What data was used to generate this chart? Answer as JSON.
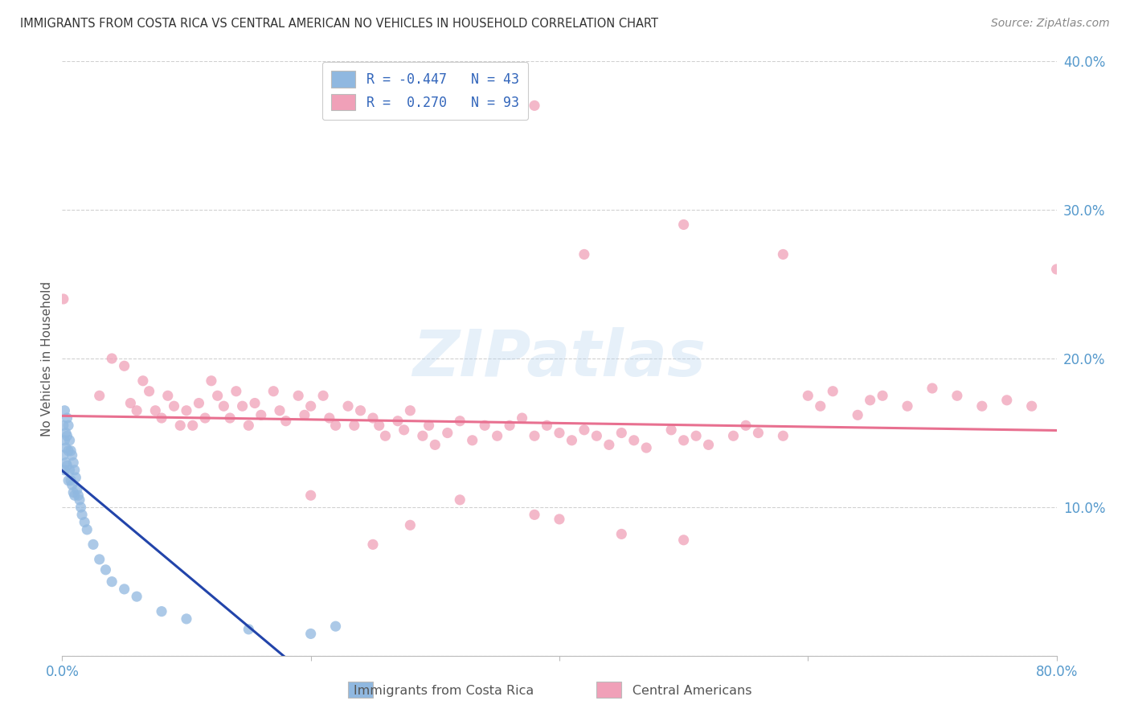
{
  "title": "IMMIGRANTS FROM COSTA RICA VS CENTRAL AMERICAN NO VEHICLES IN HOUSEHOLD CORRELATION CHART",
  "source": "Source: ZipAtlas.com",
  "ylabel": "No Vehicles in Household",
  "color_blue": "#90B8E0",
  "color_pink": "#F0A0B8",
  "trendline_blue": "#2244AA",
  "trendline_pink": "#E87090",
  "background": "#FFFFFF",
  "legend_blue_label": "R = -0.447   N = 43",
  "legend_pink_label": "R =  0.270   N = 93",
  "bottom_legend_blue": "Immigrants from Costa Rica",
  "bottom_legend_pink": "Central Americans",
  "blue_x": [
    0.001,
    0.001,
    0.002,
    0.002,
    0.002,
    0.003,
    0.003,
    0.003,
    0.004,
    0.004,
    0.004,
    0.005,
    0.005,
    0.005,
    0.006,
    0.006,
    0.007,
    0.007,
    0.008,
    0.008,
    0.009,
    0.009,
    0.01,
    0.01,
    0.011,
    0.012,
    0.013,
    0.014,
    0.015,
    0.016,
    0.018,
    0.02,
    0.025,
    0.03,
    0.035,
    0.04,
    0.05,
    0.06,
    0.08,
    0.1,
    0.15,
    0.2,
    0.22
  ],
  "blue_y": [
    0.155,
    0.135,
    0.165,
    0.145,
    0.125,
    0.15,
    0.14,
    0.13,
    0.16,
    0.148,
    0.128,
    0.155,
    0.138,
    0.118,
    0.145,
    0.125,
    0.138,
    0.118,
    0.135,
    0.115,
    0.13,
    0.11,
    0.125,
    0.108,
    0.12,
    0.112,
    0.108,
    0.105,
    0.1,
    0.095,
    0.09,
    0.085,
    0.075,
    0.065,
    0.058,
    0.05,
    0.045,
    0.04,
    0.03,
    0.025,
    0.018,
    0.015,
    0.02
  ],
  "pink_x": [
    0.001,
    0.03,
    0.04,
    0.05,
    0.055,
    0.06,
    0.065,
    0.07,
    0.075,
    0.08,
    0.085,
    0.09,
    0.095,
    0.1,
    0.105,
    0.11,
    0.115,
    0.12,
    0.125,
    0.13,
    0.135,
    0.14,
    0.145,
    0.15,
    0.155,
    0.16,
    0.17,
    0.175,
    0.18,
    0.19,
    0.195,
    0.2,
    0.21,
    0.215,
    0.22,
    0.23,
    0.235,
    0.24,
    0.25,
    0.255,
    0.26,
    0.27,
    0.275,
    0.28,
    0.29,
    0.295,
    0.3,
    0.31,
    0.32,
    0.33,
    0.34,
    0.35,
    0.36,
    0.37,
    0.38,
    0.39,
    0.4,
    0.41,
    0.42,
    0.43,
    0.44,
    0.45,
    0.46,
    0.47,
    0.49,
    0.5,
    0.51,
    0.52,
    0.54,
    0.55,
    0.56,
    0.58,
    0.6,
    0.61,
    0.62,
    0.64,
    0.65,
    0.66,
    0.68,
    0.7,
    0.72,
    0.74,
    0.76,
    0.78,
    0.8,
    0.4,
    0.45,
    0.5,
    0.38,
    0.32,
    0.28,
    0.25,
    0.2
  ],
  "pink_y": [
    0.24,
    0.175,
    0.2,
    0.195,
    0.17,
    0.165,
    0.185,
    0.178,
    0.165,
    0.16,
    0.175,
    0.168,
    0.155,
    0.165,
    0.155,
    0.17,
    0.16,
    0.185,
    0.175,
    0.168,
    0.16,
    0.178,
    0.168,
    0.155,
    0.17,
    0.162,
    0.178,
    0.165,
    0.158,
    0.175,
    0.162,
    0.168,
    0.175,
    0.16,
    0.155,
    0.168,
    0.155,
    0.165,
    0.16,
    0.155,
    0.148,
    0.158,
    0.152,
    0.165,
    0.148,
    0.155,
    0.142,
    0.15,
    0.158,
    0.145,
    0.155,
    0.148,
    0.155,
    0.16,
    0.148,
    0.155,
    0.15,
    0.145,
    0.152,
    0.148,
    0.142,
    0.15,
    0.145,
    0.14,
    0.152,
    0.145,
    0.148,
    0.142,
    0.148,
    0.155,
    0.15,
    0.148,
    0.175,
    0.168,
    0.178,
    0.162,
    0.172,
    0.175,
    0.168,
    0.18,
    0.175,
    0.168,
    0.172,
    0.168,
    0.26,
    0.092,
    0.082,
    0.078,
    0.095,
    0.105,
    0.088,
    0.075,
    0.108
  ]
}
